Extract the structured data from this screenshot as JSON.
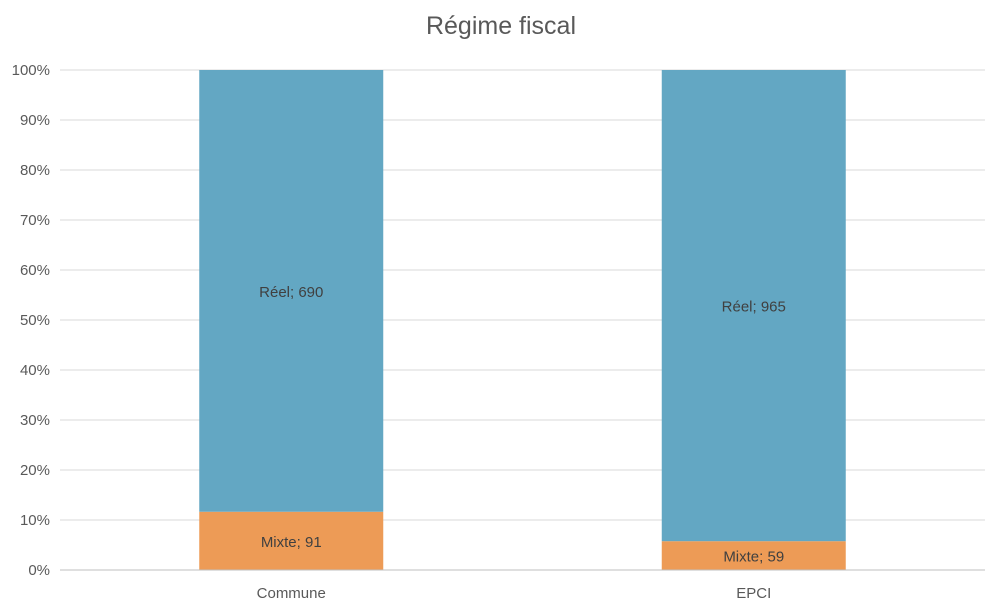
{
  "chart_data": {
    "type": "bar",
    "stacked": "percent",
    "title": "Régime fiscal",
    "xlabel": "",
    "ylabel": "",
    "categories": [
      "Commune",
      "EPCI"
    ],
    "series": [
      {
        "name": "Mixte",
        "values": [
          91,
          59
        ],
        "color": "#ED9B56"
      },
      {
        "name": "Réel",
        "values": [
          690,
          965
        ],
        "color": "#63A7C3"
      }
    ],
    "ylim": [
      0,
      1
    ],
    "y_ticks": [
      "0%",
      "10%",
      "20%",
      "30%",
      "40%",
      "50%",
      "60%",
      "70%",
      "80%",
      "90%",
      "100%"
    ],
    "data_labels": [
      [
        "Mixte; 91",
        "Mixte; 59"
      ],
      [
        "Réel; 690",
        "Réel; 965"
      ]
    ],
    "grid": true,
    "legend": "none"
  }
}
